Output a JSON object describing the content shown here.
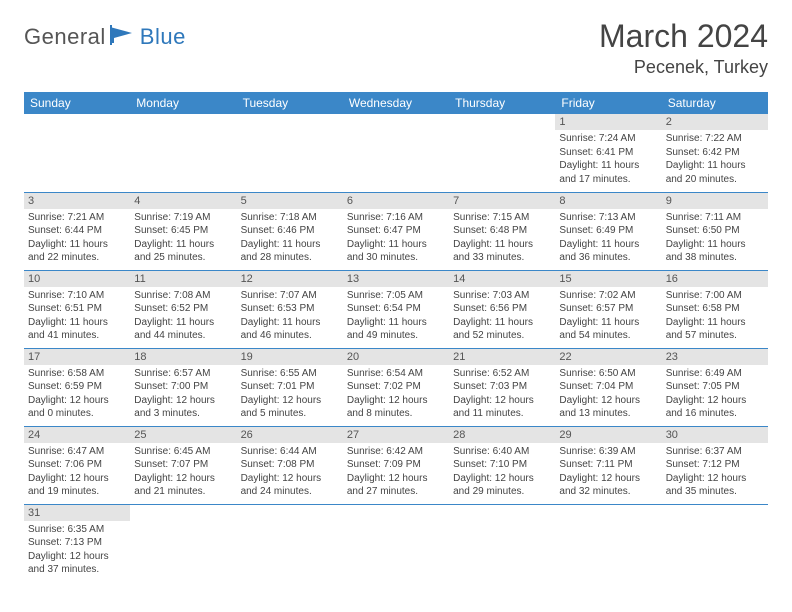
{
  "brand": {
    "part1": "General",
    "part2": "Blue"
  },
  "title": "March 2024",
  "location": "Pecenek, Turkey",
  "colors": {
    "header_bg": "#3b87c8",
    "header_text": "#ffffff",
    "daynum_bg": "#e4e4e4",
    "cell_border": "#3b87c8",
    "body_text": "#444444",
    "brand_blue": "#2f78bb",
    "brand_gray": "#555555",
    "page_bg": "#ffffff"
  },
  "typography": {
    "title_size_pt": 32,
    "location_size_pt": 18,
    "header_size_pt": 12,
    "body_size_pt": 10
  },
  "layout": {
    "columns": 7,
    "rows": 6,
    "day_header_bg": "#e4e4e4"
  },
  "weekdays": [
    "Sunday",
    "Monday",
    "Tuesday",
    "Wednesday",
    "Thursday",
    "Friday",
    "Saturday"
  ],
  "weeks": [
    [
      null,
      null,
      null,
      null,
      null,
      {
        "n": "1",
        "sunrise": "Sunrise: 7:24 AM",
        "sunset": "Sunset: 6:41 PM",
        "daylight": "Daylight: 11 hours and 17 minutes."
      },
      {
        "n": "2",
        "sunrise": "Sunrise: 7:22 AM",
        "sunset": "Sunset: 6:42 PM",
        "daylight": "Daylight: 11 hours and 20 minutes."
      }
    ],
    [
      {
        "n": "3",
        "sunrise": "Sunrise: 7:21 AM",
        "sunset": "Sunset: 6:44 PM",
        "daylight": "Daylight: 11 hours and 22 minutes."
      },
      {
        "n": "4",
        "sunrise": "Sunrise: 7:19 AM",
        "sunset": "Sunset: 6:45 PM",
        "daylight": "Daylight: 11 hours and 25 minutes."
      },
      {
        "n": "5",
        "sunrise": "Sunrise: 7:18 AM",
        "sunset": "Sunset: 6:46 PM",
        "daylight": "Daylight: 11 hours and 28 minutes."
      },
      {
        "n": "6",
        "sunrise": "Sunrise: 7:16 AM",
        "sunset": "Sunset: 6:47 PM",
        "daylight": "Daylight: 11 hours and 30 minutes."
      },
      {
        "n": "7",
        "sunrise": "Sunrise: 7:15 AM",
        "sunset": "Sunset: 6:48 PM",
        "daylight": "Daylight: 11 hours and 33 minutes."
      },
      {
        "n": "8",
        "sunrise": "Sunrise: 7:13 AM",
        "sunset": "Sunset: 6:49 PM",
        "daylight": "Daylight: 11 hours and 36 minutes."
      },
      {
        "n": "9",
        "sunrise": "Sunrise: 7:11 AM",
        "sunset": "Sunset: 6:50 PM",
        "daylight": "Daylight: 11 hours and 38 minutes."
      }
    ],
    [
      {
        "n": "10",
        "sunrise": "Sunrise: 7:10 AM",
        "sunset": "Sunset: 6:51 PM",
        "daylight": "Daylight: 11 hours and 41 minutes."
      },
      {
        "n": "11",
        "sunrise": "Sunrise: 7:08 AM",
        "sunset": "Sunset: 6:52 PM",
        "daylight": "Daylight: 11 hours and 44 minutes."
      },
      {
        "n": "12",
        "sunrise": "Sunrise: 7:07 AM",
        "sunset": "Sunset: 6:53 PM",
        "daylight": "Daylight: 11 hours and 46 minutes."
      },
      {
        "n": "13",
        "sunrise": "Sunrise: 7:05 AM",
        "sunset": "Sunset: 6:54 PM",
        "daylight": "Daylight: 11 hours and 49 minutes."
      },
      {
        "n": "14",
        "sunrise": "Sunrise: 7:03 AM",
        "sunset": "Sunset: 6:56 PM",
        "daylight": "Daylight: 11 hours and 52 minutes."
      },
      {
        "n": "15",
        "sunrise": "Sunrise: 7:02 AM",
        "sunset": "Sunset: 6:57 PM",
        "daylight": "Daylight: 11 hours and 54 minutes."
      },
      {
        "n": "16",
        "sunrise": "Sunrise: 7:00 AM",
        "sunset": "Sunset: 6:58 PM",
        "daylight": "Daylight: 11 hours and 57 minutes."
      }
    ],
    [
      {
        "n": "17",
        "sunrise": "Sunrise: 6:58 AM",
        "sunset": "Sunset: 6:59 PM",
        "daylight": "Daylight: 12 hours and 0 minutes."
      },
      {
        "n": "18",
        "sunrise": "Sunrise: 6:57 AM",
        "sunset": "Sunset: 7:00 PM",
        "daylight": "Daylight: 12 hours and 3 minutes."
      },
      {
        "n": "19",
        "sunrise": "Sunrise: 6:55 AM",
        "sunset": "Sunset: 7:01 PM",
        "daylight": "Daylight: 12 hours and 5 minutes."
      },
      {
        "n": "20",
        "sunrise": "Sunrise: 6:54 AM",
        "sunset": "Sunset: 7:02 PM",
        "daylight": "Daylight: 12 hours and 8 minutes."
      },
      {
        "n": "21",
        "sunrise": "Sunrise: 6:52 AM",
        "sunset": "Sunset: 7:03 PM",
        "daylight": "Daylight: 12 hours and 11 minutes."
      },
      {
        "n": "22",
        "sunrise": "Sunrise: 6:50 AM",
        "sunset": "Sunset: 7:04 PM",
        "daylight": "Daylight: 12 hours and 13 minutes."
      },
      {
        "n": "23",
        "sunrise": "Sunrise: 6:49 AM",
        "sunset": "Sunset: 7:05 PM",
        "daylight": "Daylight: 12 hours and 16 minutes."
      }
    ],
    [
      {
        "n": "24",
        "sunrise": "Sunrise: 6:47 AM",
        "sunset": "Sunset: 7:06 PM",
        "daylight": "Daylight: 12 hours and 19 minutes."
      },
      {
        "n": "25",
        "sunrise": "Sunrise: 6:45 AM",
        "sunset": "Sunset: 7:07 PM",
        "daylight": "Daylight: 12 hours and 21 minutes."
      },
      {
        "n": "26",
        "sunrise": "Sunrise: 6:44 AM",
        "sunset": "Sunset: 7:08 PM",
        "daylight": "Daylight: 12 hours and 24 minutes."
      },
      {
        "n": "27",
        "sunrise": "Sunrise: 6:42 AM",
        "sunset": "Sunset: 7:09 PM",
        "daylight": "Daylight: 12 hours and 27 minutes."
      },
      {
        "n": "28",
        "sunrise": "Sunrise: 6:40 AM",
        "sunset": "Sunset: 7:10 PM",
        "daylight": "Daylight: 12 hours and 29 minutes."
      },
      {
        "n": "29",
        "sunrise": "Sunrise: 6:39 AM",
        "sunset": "Sunset: 7:11 PM",
        "daylight": "Daylight: 12 hours and 32 minutes."
      },
      {
        "n": "30",
        "sunrise": "Sunrise: 6:37 AM",
        "sunset": "Sunset: 7:12 PM",
        "daylight": "Daylight: 12 hours and 35 minutes."
      }
    ],
    [
      {
        "n": "31",
        "sunrise": "Sunrise: 6:35 AM",
        "sunset": "Sunset: 7:13 PM",
        "daylight": "Daylight: 12 hours and 37 minutes."
      },
      null,
      null,
      null,
      null,
      null,
      null
    ]
  ]
}
